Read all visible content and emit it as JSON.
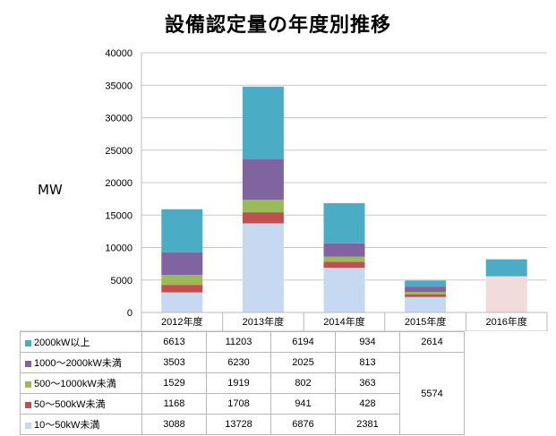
{
  "chart_data": {
    "type": "bar",
    "stacked": true,
    "title": "設備認定量の年度別推移",
    "ylabel": "MW",
    "ylim": [
      0,
      40000
    ],
    "yticks": [
      0,
      5000,
      10000,
      15000,
      20000,
      25000,
      30000,
      35000,
      40000
    ],
    "grid": true,
    "legend": "data-table-below",
    "categories": [
      "2012年度",
      "2013年度",
      "2014年度",
      "2015年度",
      "2016年度"
    ],
    "series": [
      {
        "name": "10～50kW未満",
        "color": "#c6d9f1",
        "values": [
          3088,
          13728,
          6876,
          2381,
          null
        ]
      },
      {
        "name": "50～500kW未満",
        "color": "#c0504d",
        "values": [
          1168,
          1708,
          941,
          428,
          null
        ]
      },
      {
        "name": "500～1000kW未満",
        "color": "#9bbb59",
        "values": [
          1529,
          1919,
          802,
          363,
          null
        ]
      },
      {
        "name": "1000～2000kW未満",
        "color": "#8064a2",
        "values": [
          3503,
          6230,
          2025,
          813,
          null
        ]
      },
      {
        "name": "2000kW以上",
        "color": "#4bacc6",
        "values": [
          6613,
          11203,
          6194,
          934,
          2614
        ]
      }
    ],
    "merged_2016": {
      "label": "5574",
      "value": 5574,
      "color": "#f2dcdb"
    }
  }
}
